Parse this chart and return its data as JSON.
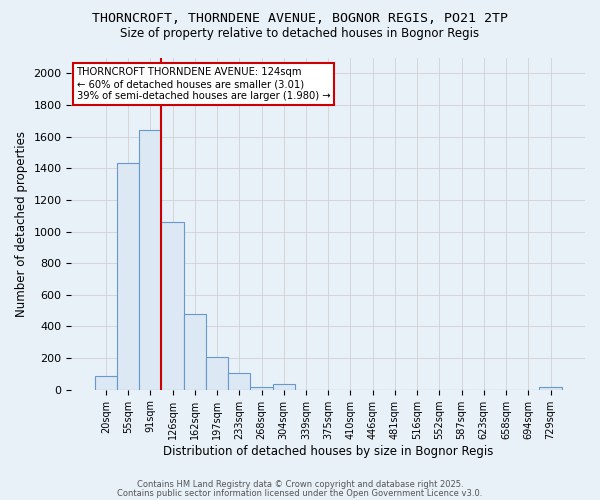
{
  "title_line1": "THORNCROFT, THORNDENE AVENUE, BOGNOR REGIS, PO21 2TP",
  "title_line2": "Size of property relative to detached houses in Bognor Regis",
  "xlabel": "Distribution of detached houses by size in Bognor Regis",
  "ylabel": "Number of detached properties",
  "categories": [
    "20sqm",
    "55sqm",
    "91sqm",
    "126sqm",
    "162sqm",
    "197sqm",
    "233sqm",
    "268sqm",
    "304sqm",
    "339sqm",
    "375sqm",
    "410sqm",
    "446sqm",
    "481sqm",
    "516sqm",
    "552sqm",
    "587sqm",
    "623sqm",
    "658sqm",
    "694sqm",
    "729sqm"
  ],
  "values": [
    85,
    1430,
    1640,
    1060,
    480,
    205,
    105,
    20,
    35,
    0,
    0,
    0,
    0,
    0,
    0,
    0,
    0,
    0,
    0,
    0,
    20
  ],
  "bar_color": "#dce8f4",
  "bar_edge_color": "#6699cc",
  "vline_color": "#cc0000",
  "vline_pos": 2.5,
  "ylim": [
    0,
    2100
  ],
  "yticks": [
    0,
    200,
    400,
    600,
    800,
    1000,
    1200,
    1400,
    1600,
    1800,
    2000
  ],
  "annotation_text_line1": "THORNCROFT THORNDENE AVENUE: 124sqm",
  "annotation_text_line2": "← 60% of detached houses are smaller (3.01)",
  "annotation_text_line3": "39% of semi-detached houses are larger (1.980) →",
  "footer_line1": "Contains HM Land Registry data © Crown copyright and database right 2025.",
  "footer_line2": "Contains public sector information licensed under the Open Government Licence v3.0.",
  "background_color": "#e8f0f8",
  "grid_color": "#cccccc"
}
